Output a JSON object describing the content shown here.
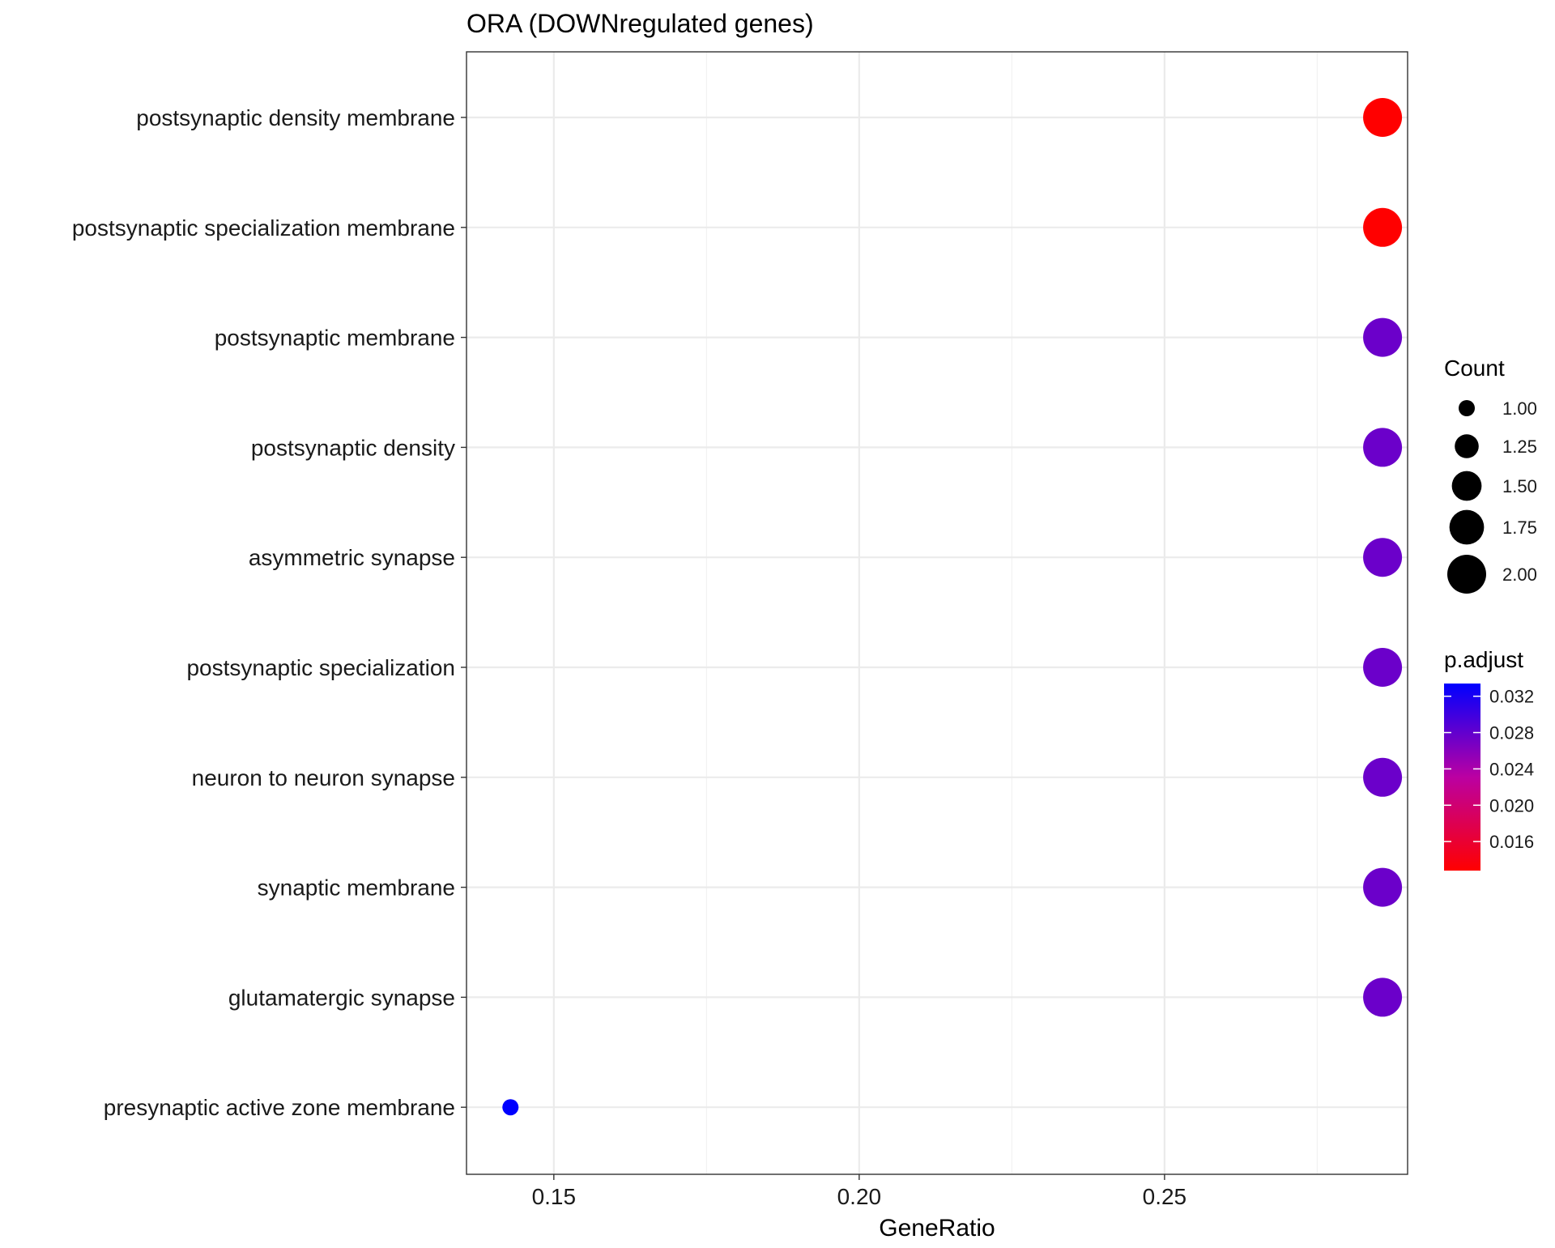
{
  "chart_data": {
    "type": "scatter",
    "title": "ORA (DOWNregulated genes)",
    "xlabel": "GeneRatio",
    "ylabel": "",
    "xlim": [
      0.1357,
      0.2898
    ],
    "xticks": [
      {
        "value": 0.15,
        "label": "0.15"
      },
      {
        "value": 0.2,
        "label": "0.20"
      },
      {
        "value": 0.25,
        "label": "0.25"
      }
    ],
    "grid": true,
    "categories": [
      "postsynaptic density membrane",
      "postsynaptic specialization membrane",
      "postsynaptic membrane",
      "postsynaptic density",
      "asymmetric synapse",
      "postsynaptic specialization",
      "neuron to neuron synapse",
      "synaptic membrane",
      "glutamatergic synapse",
      "presynaptic active zone membrane"
    ],
    "points": [
      {
        "term": "postsynaptic density membrane",
        "gene_ratio": 0.2857,
        "count": 2,
        "p_adjust": 0.0128
      },
      {
        "term": "postsynaptic specialization membrane",
        "gene_ratio": 0.2857,
        "count": 2,
        "p_adjust": 0.0128
      },
      {
        "term": "postsynaptic membrane",
        "gene_ratio": 0.2857,
        "count": 2,
        "p_adjust": 0.0275
      },
      {
        "term": "postsynaptic density",
        "gene_ratio": 0.2857,
        "count": 2,
        "p_adjust": 0.0275
      },
      {
        "term": "asymmetric synapse",
        "gene_ratio": 0.2857,
        "count": 2,
        "p_adjust": 0.0275
      },
      {
        "term": "postsynaptic specialization",
        "gene_ratio": 0.2857,
        "count": 2,
        "p_adjust": 0.0275
      },
      {
        "term": "neuron to neuron synapse",
        "gene_ratio": 0.2857,
        "count": 2,
        "p_adjust": 0.0275
      },
      {
        "term": "synaptic membrane",
        "gene_ratio": 0.2857,
        "count": 2,
        "p_adjust": 0.0275
      },
      {
        "term": "glutamatergic synapse",
        "gene_ratio": 0.2857,
        "count": 2,
        "p_adjust": 0.0275
      },
      {
        "term": "presynaptic active zone membrane",
        "gene_ratio": 0.1429,
        "count": 1,
        "p_adjust": 0.0334
      }
    ],
    "size_legend": {
      "title": "Count",
      "entries": [
        {
          "value": 1.0,
          "label": "1.00"
        },
        {
          "value": 1.25,
          "label": "1.25"
        },
        {
          "value": 1.5,
          "label": "1.50"
        },
        {
          "value": 1.75,
          "label": "1.75"
        },
        {
          "value": 2.0,
          "label": "2.00"
        }
      ]
    },
    "color_legend": {
      "title": "p.adjust",
      "range": [
        0.0128,
        0.0334
      ],
      "low_color": "#ff0000",
      "high_color": "#0000ff",
      "ticks": [
        {
          "value": 0.032,
          "label": "0.032"
        },
        {
          "value": 0.028,
          "label": "0.028"
        },
        {
          "value": 0.024,
          "label": "0.024"
        },
        {
          "value": 0.02,
          "label": "0.020"
        },
        {
          "value": 0.016,
          "label": "0.016"
        }
      ]
    },
    "legend_position": "right"
  }
}
